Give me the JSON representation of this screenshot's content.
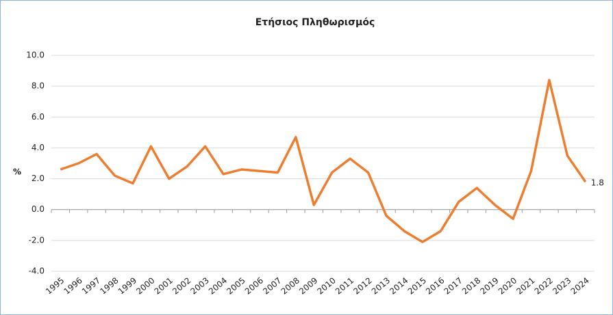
{
  "chart_data": {
    "type": "line",
    "title": "Ετήσιος Πληθωρισμός",
    "y_label": "%",
    "categories": [
      "1995",
      "1996",
      "1997",
      "1998",
      "1999",
      "2000",
      "2001",
      "2002",
      "2003",
      "2004",
      "2005",
      "2006",
      "2007",
      "2008",
      "2009",
      "2010",
      "2011",
      "2012",
      "2013",
      "2014",
      "2015",
      "2016",
      "2017",
      "2018",
      "2019",
      "2020",
      "2021",
      "2022",
      "2023",
      "2024"
    ],
    "series": [
      {
        "name": "Ετήσιος Πληθωρισμός",
        "color": "#ed7d31",
        "values": [
          2.6,
          3.0,
          3.6,
          2.2,
          1.7,
          4.1,
          2.0,
          2.8,
          4.1,
          2.3,
          2.6,
          2.5,
          2.4,
          4.7,
          0.3,
          2.4,
          3.3,
          2.4,
          -0.4,
          -1.4,
          -2.1,
          -1.4,
          0.5,
          1.4,
          0.3,
          -0.6,
          2.5,
          8.4,
          3.5,
          1.8
        ]
      }
    ],
    "ylim": [
      -4,
      10
    ],
    "yticks": [
      {
        "value": -4,
        "label": "-4.0"
      },
      {
        "value": -2,
        "label": "-2.0"
      },
      {
        "value": 0,
        "label": "0.0"
      },
      {
        "value": 2,
        "label": "2.0"
      },
      {
        "value": 4,
        "label": "4.0"
      },
      {
        "value": 6,
        "label": "6.0"
      },
      {
        "value": 8,
        "label": "8.0"
      },
      {
        "value": 10,
        "label": "10.0"
      }
    ],
    "grid": true,
    "label_last_point": true
  }
}
